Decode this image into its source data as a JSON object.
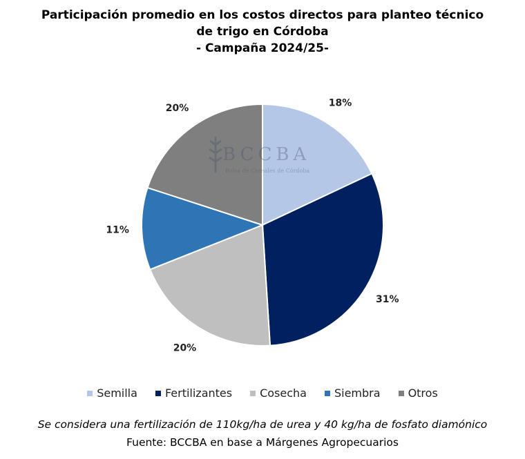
{
  "chart_data": {
    "type": "pie",
    "title_lines": [
      "Participación promedio en los costos directos para planteo técnico",
      "de trigo en Córdoba",
      "- Campaña 2024/25-"
    ],
    "categories": [
      "Semilla",
      "Fertilizantes",
      "Cosecha",
      "Siembra",
      "Otros"
    ],
    "values": [
      18,
      31,
      20,
      11,
      20
    ],
    "data_labels": [
      "18%",
      "31%",
      "20%",
      "11%",
      "20%"
    ],
    "colors": [
      "#b4c7e7",
      "#002060",
      "#bfbfbf",
      "#2e75b6",
      "#7f7f7f"
    ],
    "start": "12 o'clock, clockwise",
    "legend_position": "bottom"
  },
  "watermark": {
    "logo": "BCCBA",
    "subtitle": "Bolsa de Cereales de Córdoba"
  },
  "footnote": "Se considera una fertilización de 110kg/ha de urea y 40 kg/ha de fosfato diamónico",
  "source": "Fuente: BCCBA en base a Márgenes Agropecuarios"
}
